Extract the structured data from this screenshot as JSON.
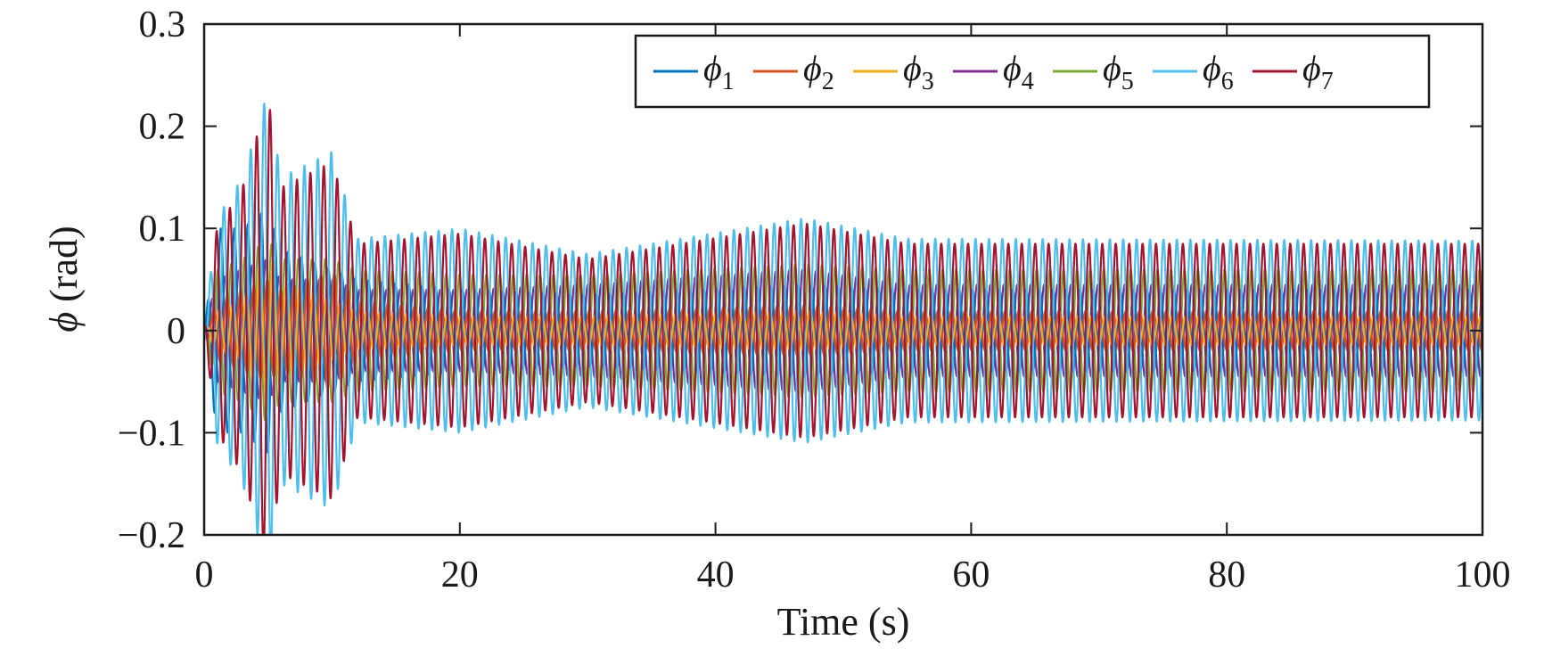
{
  "chart_data": {
    "type": "line",
    "title": "",
    "xlabel": "Time (s)",
    "ylabel_symbol": "ϕ",
    "ylabel_unit": " (rad)",
    "xlim": [
      0,
      100
    ],
    "ylim": [
      -0.2,
      0.3
    ],
    "xticks": [
      0,
      20,
      40,
      60,
      80,
      100
    ],
    "xtick_labels": [
      "0",
      "20",
      "40",
      "60",
      "80",
      "100"
    ],
    "yticks": [
      -0.2,
      -0.1,
      0,
      0.1,
      0.2,
      0.3
    ],
    "ytick_labels": [
      "−0.2",
      "−0.1",
      "0",
      "0.1",
      "0.2",
      "0.3"
    ],
    "grid": false,
    "legend_position": "top-right",
    "legend_orientation": "horizontal",
    "oscillation_period_s": 1.05,
    "series": [
      {
        "name": "ϕ",
        "sub": "1",
        "color": "#0072BD",
        "order": 0,
        "envelope_t": [
          0,
          1,
          3,
          5,
          6,
          10,
          12,
          20,
          30,
          47,
          55,
          100
        ],
        "envelope_a": [
          0,
          0.1,
          0.1,
          0.12,
          0.08,
          0.06,
          0.05,
          0.04,
          0.035,
          0.045,
          0.04,
          0.04
        ]
      },
      {
        "name": "ϕ",
        "sub": "2",
        "color": "#D95319",
        "order": 1,
        "envelope_t": [
          0,
          1,
          3,
          5,
          6,
          10,
          12,
          20,
          30,
          47,
          55,
          100
        ],
        "envelope_a": [
          0,
          0.03,
          0.04,
          0.05,
          0.04,
          0.06,
          0.03,
          0.02,
          0.02,
          0.025,
          0.02,
          0.02
        ]
      },
      {
        "name": "ϕ",
        "sub": "3",
        "color": "#EDB120",
        "order": 2,
        "envelope_t": [
          0,
          1,
          3,
          5,
          6,
          10,
          12,
          20,
          30,
          47,
          55,
          100
        ],
        "envelope_a": [
          0,
          0.02,
          0.03,
          0.08,
          0.05,
          0.03,
          0.02,
          0.015,
          0.015,
          0.02,
          0.015,
          0.015
        ]
      },
      {
        "name": "ϕ",
        "sub": "4",
        "color": "#7E2F8E",
        "order": 3,
        "envelope_t": [
          0,
          1,
          3,
          5,
          6,
          10,
          12,
          20,
          30,
          47,
          55,
          100
        ],
        "envelope_a": [
          0,
          0.05,
          0.06,
          0.07,
          0.05,
          0.05,
          0.04,
          0.04,
          0.045,
          0.06,
          0.045,
          0.045
        ]
      },
      {
        "name": "ϕ",
        "sub": "5",
        "color": "#77AC30",
        "order": 4,
        "envelope_t": [
          0,
          1,
          3,
          5,
          6,
          10,
          12,
          20,
          30,
          47,
          55,
          100
        ],
        "envelope_a": [
          0,
          0.06,
          0.07,
          0.09,
          0.07,
          0.07,
          0.06,
          0.055,
          0.055,
          0.065,
          0.06,
          0.06
        ]
      },
      {
        "name": "ϕ",
        "sub": "6",
        "color": "#4DBEEE",
        "order": 5,
        "envelope_t": [
          0,
          1,
          3,
          5,
          6,
          10,
          12,
          20,
          30,
          47,
          55,
          100
        ],
        "envelope_a": [
          0,
          0.11,
          0.15,
          0.235,
          0.15,
          0.175,
          0.09,
          0.1,
          0.075,
          0.11,
          0.09,
          0.088
        ]
      },
      {
        "name": "ϕ",
        "sub": "7",
        "color": "#A2142F",
        "order": 6,
        "envelope_t": [
          0,
          1,
          3,
          5,
          6,
          10,
          12,
          20,
          30,
          47,
          55,
          100
        ],
        "envelope_a": [
          0,
          0.1,
          0.14,
          0.23,
          0.14,
          0.165,
          0.085,
          0.095,
          0.07,
          0.105,
          0.085,
          0.085
        ]
      }
    ]
  }
}
